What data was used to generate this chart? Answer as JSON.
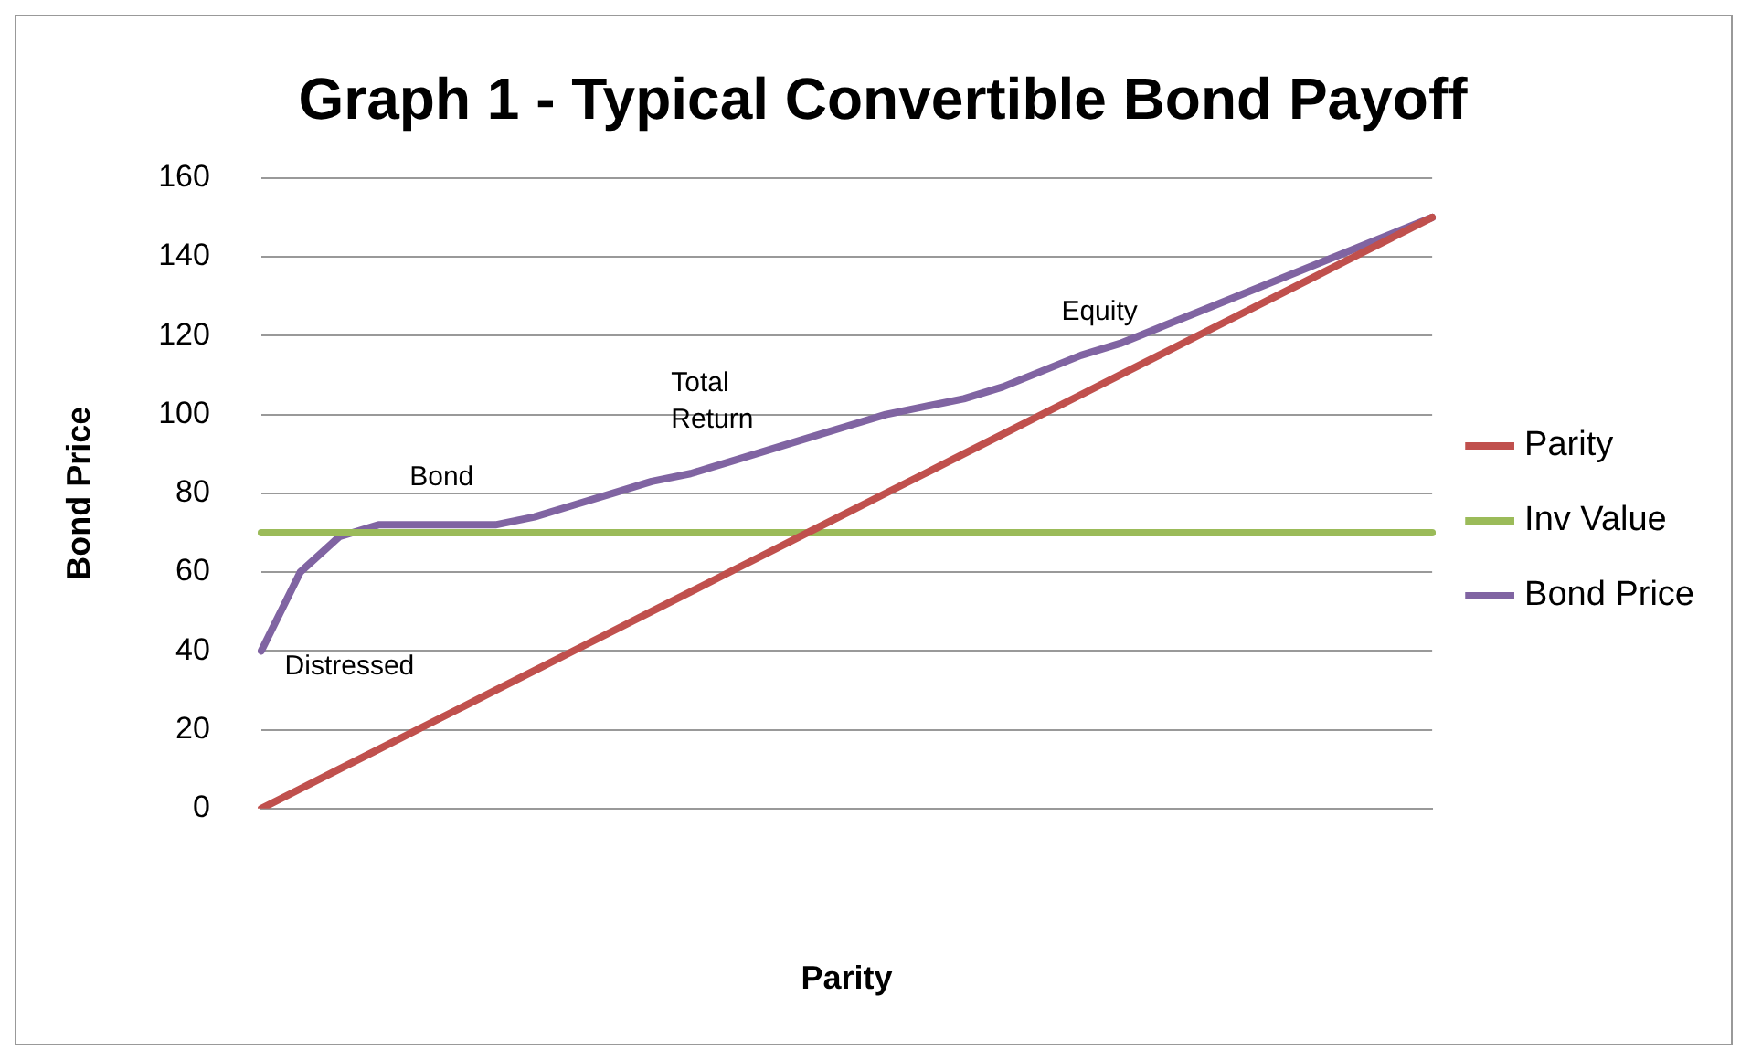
{
  "chart_data": {
    "type": "line",
    "title": "Graph 1 - Typical Convertible Bond Payoff",
    "xlabel": "Parity",
    "ylabel": "Bond Price",
    "categories": [
      null,
      null,
      null,
      null,
      null,
      null,
      null,
      null,
      null,
      null,
      null,
      null,
      null,
      null,
      null,
      null,
      null,
      null,
      null,
      null,
      null,
      null,
      null,
      null,
      null,
      null,
      null,
      null,
      null,
      null,
      null
    ],
    "series": [
      {
        "name": "Parity",
        "color": "#c0504d",
        "values": [
          0,
          5,
          10,
          15,
          20,
          25,
          30,
          35,
          40,
          45,
          50,
          55,
          60,
          65,
          70,
          75,
          80,
          85,
          90,
          95,
          100,
          105,
          110,
          115,
          120,
          125,
          130,
          135,
          140,
          145,
          150
        ]
      },
      {
        "name": "Inv Value",
        "color": "#9bbb59",
        "values": [
          70,
          70,
          70,
          70,
          70,
          70,
          70,
          70,
          70,
          70,
          70,
          70,
          70,
          70,
          70,
          70,
          70,
          70,
          70,
          70,
          70,
          70,
          70,
          70,
          70,
          70,
          70,
          70,
          70,
          70,
          70
        ]
      },
      {
        "name": "Bond Price",
        "color": "#8064a2",
        "values": [
          40,
          60,
          69,
          72,
          72,
          72,
          72,
          74,
          77,
          80,
          83,
          85,
          88,
          91,
          94,
          97,
          100,
          102,
          104,
          107,
          111,
          115,
          118,
          122,
          126,
          130,
          134,
          138,
          142,
          146,
          150
        ]
      }
    ],
    "ylim": [
      0,
      160
    ],
    "yticks": [
      0,
      20,
      40,
      60,
      80,
      100,
      120,
      140,
      160
    ],
    "grid": "y",
    "legend": "right",
    "marker": "none",
    "line_style": "solid",
    "annotations": [
      "Distressed",
      "Bond",
      "Total\nReturn",
      "Equity"
    ],
    "tick_labels": "y"
  }
}
